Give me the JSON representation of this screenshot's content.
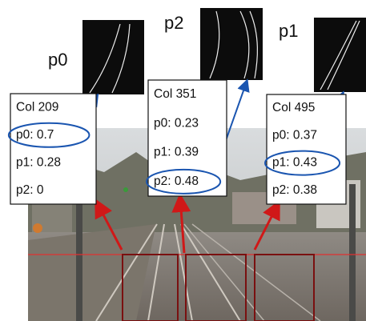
{
  "thumbnails": [
    {
      "label": "p0"
    },
    {
      "label": "p2"
    },
    {
      "label": "p1"
    }
  ],
  "boxes": [
    {
      "title": "Col 209",
      "rows": [
        "p0: 0.7",
        "p1: 0.28",
        "p2: 0"
      ]
    },
    {
      "title": "Col 351",
      "rows": [
        "p0: 0.23",
        "p1: 0.39",
        "p2: 0.48"
      ]
    },
    {
      "title": "Col 495",
      "rows": [
        "p0: 0.37",
        "p1: 0.43",
        "p2: 0.38"
      ]
    }
  ]
}
